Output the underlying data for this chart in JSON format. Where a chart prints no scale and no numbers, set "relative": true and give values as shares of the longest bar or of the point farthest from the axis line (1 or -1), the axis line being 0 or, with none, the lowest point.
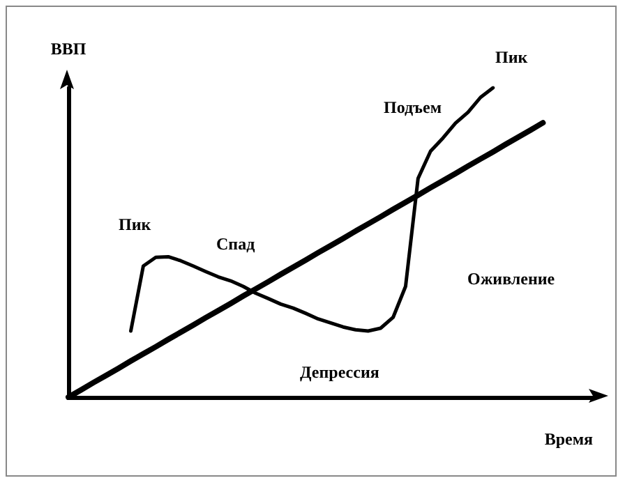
{
  "chart_data": {
    "type": "line",
    "relative": true,
    "xlabel": "Время",
    "ylabel": "ВВП",
    "marker": "none",
    "grid": false,
    "categories": [
      null,
      null,
      null,
      null,
      null,
      null,
      null,
      null,
      null,
      null,
      null,
      null,
      null,
      null,
      null,
      null,
      null,
      null,
      null,
      null,
      null,
      null,
      null,
      null,
      null,
      null,
      null,
      null,
      null,
      null,
      null,
      null,
      null,
      null,
      null,
      null,
      null,
      null,
      null,
      null,
      null,
      null,
      null
    ],
    "series": [
      {
        "color": "#000000",
        "values": [
          0,
          0.023,
          0.047,
          0.07,
          0.093,
          0.117,
          0.14,
          0.163,
          0.187,
          0.21,
          0.233,
          0.257,
          0.28,
          0.303,
          0.327,
          0.35,
          0.373,
          0.397,
          0.42,
          0.443,
          0.467,
          0.49,
          0.513,
          0.537,
          0.56,
          0.583,
          0.607,
          0.63,
          0.653,
          0.677,
          0.7,
          0.723,
          0.747,
          0.77,
          0.793,
          0.817,
          0.84,
          0.863,
          0.887,
          null,
          null,
          null,
          null
        ]
      },
      {
        "color": "#000000",
        "values": [
          null,
          null,
          null,
          null,
          null,
          0.214,
          0.424,
          0.452,
          0.454,
          0.441,
          0.424,
          0.406,
          0.389,
          0.376,
          0.358,
          0.336,
          0.319,
          0.301,
          0.288,
          0.271,
          0.253,
          0.24,
          0.227,
          0.218,
          0.214,
          0.223,
          0.258,
          0.358,
          0.707,
          0.795,
          0.838,
          0.886,
          0.921,
          0.969,
          1.0,
          null,
          null,
          null,
          null,
          null,
          null,
          null,
          null
        ]
      }
    ],
    "annotations": [
      "Пик",
      "Спад",
      "Депрессия",
      "Оживление",
      "Подъем",
      "Пик"
    ]
  }
}
